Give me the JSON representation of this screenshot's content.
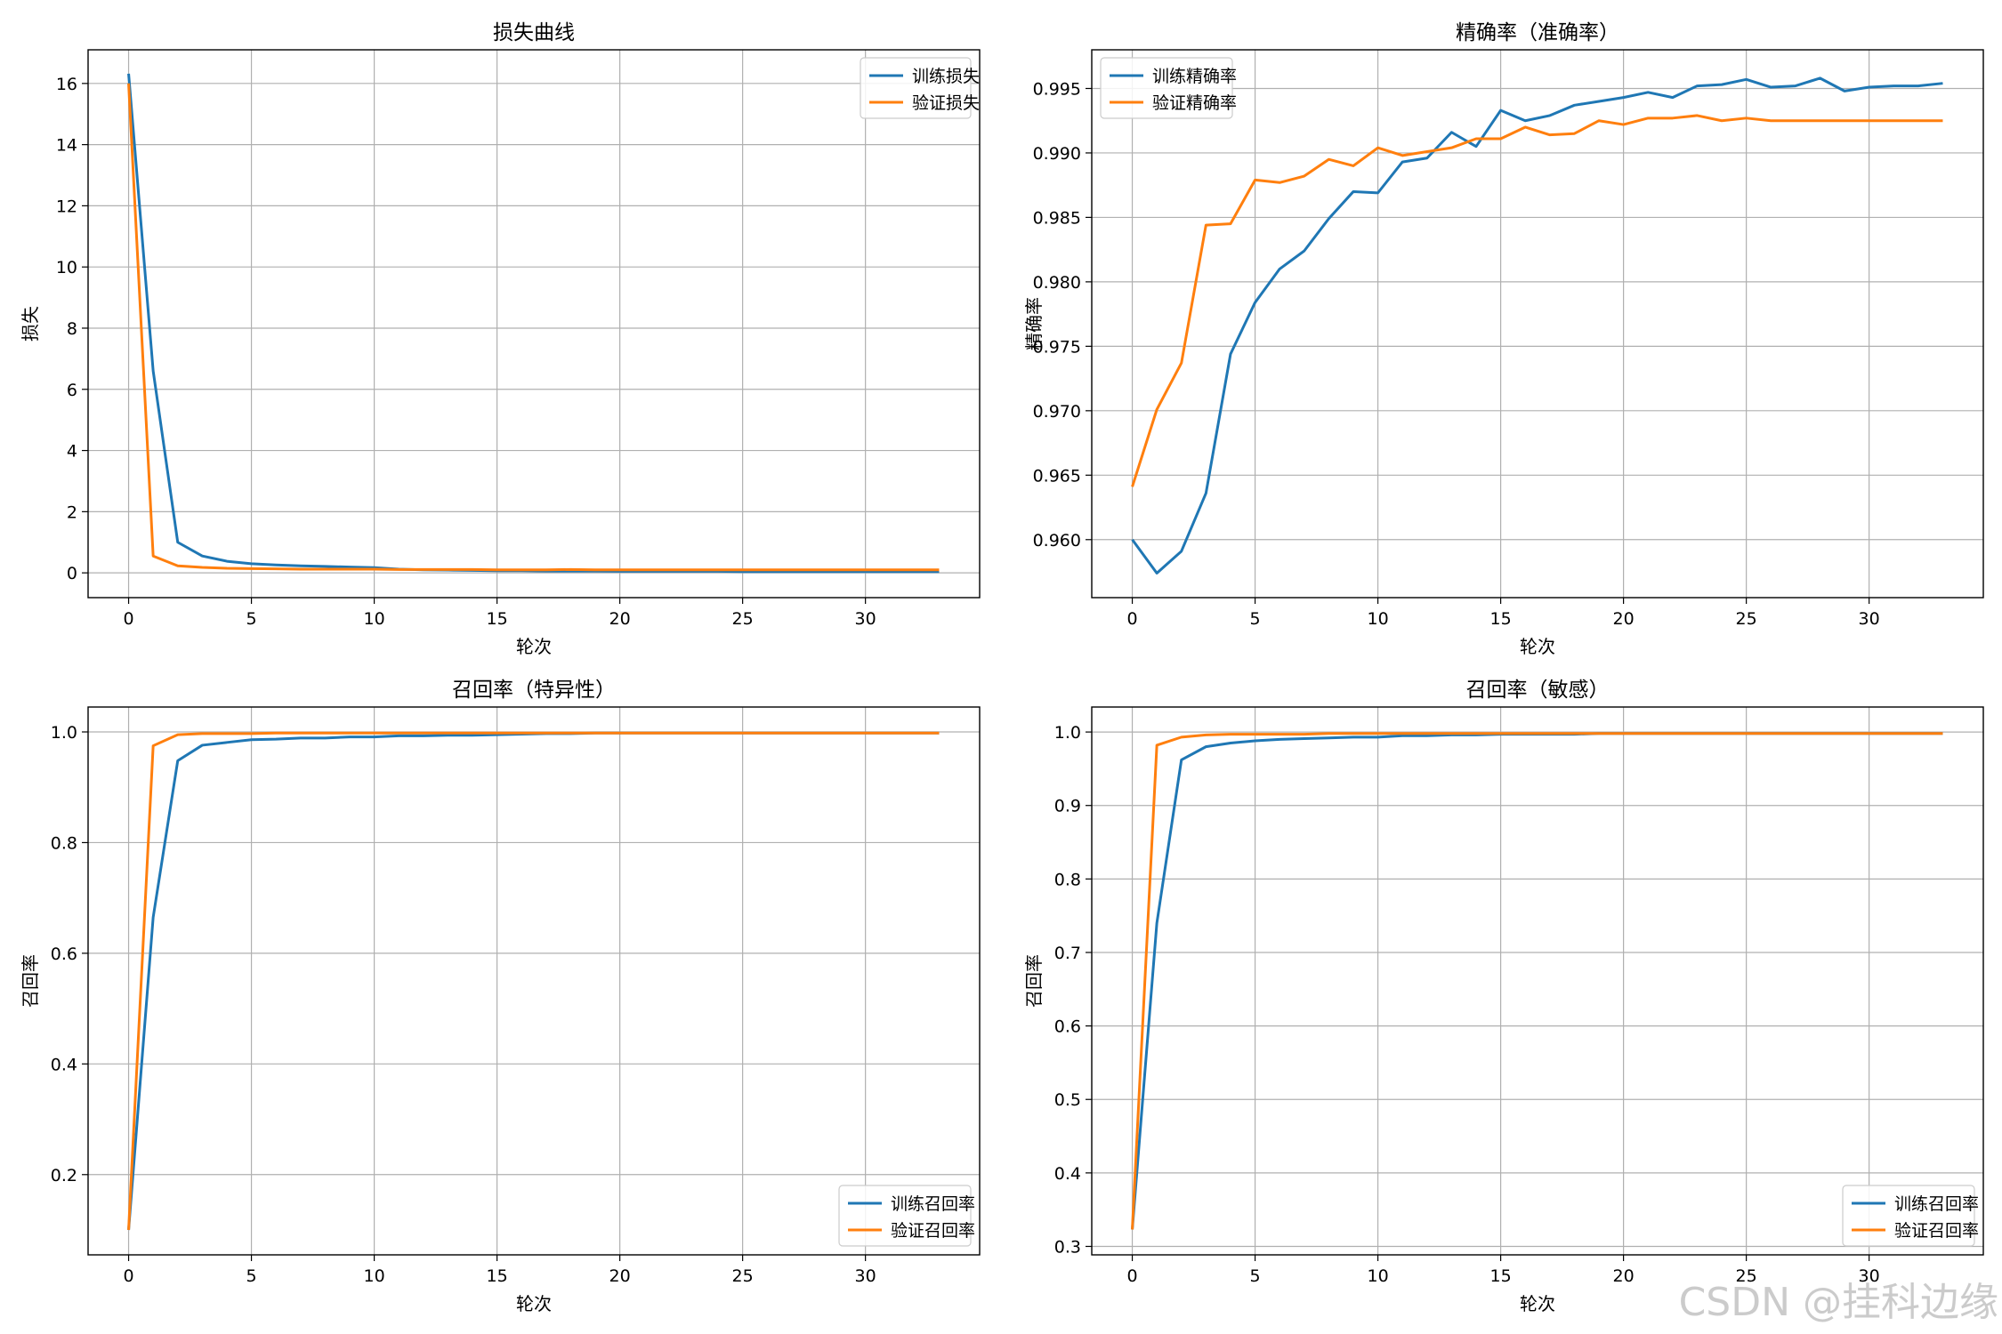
{
  "colors": {
    "blue": "#1f77b4",
    "orange": "#ff7f0e",
    "grid": "#b0b0b0"
  },
  "watermark": "CSDN @挂科边缘",
  "chart_data": [
    {
      "type": "line",
      "title": "损失曲线",
      "xlabel": "轮次",
      "ylabel": "损失",
      "xlim": [
        -1.65,
        34.65
      ],
      "ylim": [
        -0.81,
        17.1
      ],
      "xticks": [
        0,
        5,
        10,
        15,
        20,
        25,
        30
      ],
      "yticks": [
        0,
        2,
        4,
        6,
        8,
        10,
        12,
        14,
        16
      ],
      "ytick_labels": [
        "0",
        "2",
        "4",
        "6",
        "8",
        "10",
        "12",
        "14",
        "16"
      ],
      "grid": true,
      "legend": "upper right",
      "x": [
        0,
        1,
        2,
        3,
        4,
        5,
        6,
        7,
        8,
        9,
        10,
        11,
        12,
        13,
        14,
        15,
        16,
        17,
        18,
        19,
        20,
        21,
        22,
        23,
        24,
        25,
        26,
        27,
        28,
        29,
        30,
        31,
        32,
        33
      ],
      "series": [
        {
          "name": "训练损失",
          "color": "#1f77b4",
          "values": [
            16.32,
            6.6,
            1.0,
            0.55,
            0.38,
            0.3,
            0.26,
            0.23,
            0.21,
            0.19,
            0.17,
            0.12,
            0.1,
            0.09,
            0.08,
            0.07,
            0.07,
            0.06,
            0.06,
            0.06,
            0.05,
            0.05,
            0.05,
            0.05,
            0.05,
            0.04,
            0.04,
            0.04,
            0.04,
            0.04,
            0.04,
            0.04,
            0.04,
            0.04
          ]
        },
        {
          "name": "验证损失",
          "color": "#ff7f0e",
          "values": [
            16.0,
            0.55,
            0.23,
            0.18,
            0.15,
            0.14,
            0.13,
            0.12,
            0.12,
            0.12,
            0.12,
            0.11,
            0.11,
            0.11,
            0.11,
            0.1,
            0.1,
            0.1,
            0.11,
            0.1,
            0.1,
            0.1,
            0.1,
            0.1,
            0.1,
            0.1,
            0.1,
            0.1,
            0.1,
            0.1,
            0.1,
            0.1,
            0.1,
            0.1
          ]
        }
      ]
    },
    {
      "type": "line",
      "title": "精确率（准确率）",
      "xlabel": "轮次",
      "ylabel": "精确率",
      "xlim": [
        -1.65,
        34.65
      ],
      "ylim": [
        0.9555,
        0.998
      ],
      "xticks": [
        0,
        5,
        10,
        15,
        20,
        25,
        30
      ],
      "yticks": [
        0.96,
        0.965,
        0.97,
        0.975,
        0.98,
        0.985,
        0.99,
        0.995
      ],
      "ytick_labels": [
        "0.960",
        "0.965",
        "0.970",
        "0.975",
        "0.980",
        "0.985",
        "0.990",
        "0.995"
      ],
      "grid": true,
      "legend": "upper left",
      "x": [
        0,
        1,
        2,
        3,
        4,
        5,
        6,
        7,
        8,
        9,
        10,
        11,
        12,
        13,
        14,
        15,
        16,
        17,
        18,
        19,
        20,
        21,
        22,
        23,
        24,
        25,
        26,
        27,
        28,
        29,
        30,
        31,
        32,
        33
      ],
      "series": [
        {
          "name": "训练精确率",
          "color": "#1f77b4",
          "values": [
            0.96,
            0.9574,
            0.9591,
            0.9636,
            0.9744,
            0.9784,
            0.981,
            0.9824,
            0.9849,
            0.987,
            0.9869,
            0.9893,
            0.9896,
            0.9916,
            0.9905,
            0.9933,
            0.9925,
            0.9929,
            0.9937,
            0.994,
            0.9943,
            0.9947,
            0.9943,
            0.9952,
            0.9953,
            0.9957,
            0.9951,
            0.9952,
            0.9958,
            0.9948,
            0.9951,
            0.9952,
            0.9952,
            0.9954
          ]
        },
        {
          "name": "验证精确率",
          "color": "#ff7f0e",
          "values": [
            0.9641,
            0.9701,
            0.9737,
            0.9844,
            0.9845,
            0.9879,
            0.9877,
            0.9882,
            0.9895,
            0.989,
            0.9904,
            0.9898,
            0.9901,
            0.9904,
            0.9911,
            0.9911,
            0.992,
            0.9914,
            0.9915,
            0.9925,
            0.9922,
            0.9927,
            0.9927,
            0.9929,
            0.9925,
            0.9927,
            0.9925,
            0.9925,
            0.9925,
            0.9925,
            0.9925,
            0.9925,
            0.9925,
            0.9925
          ]
        }
      ]
    },
    {
      "type": "line",
      "title": "召回率（特异性）",
      "xlabel": "轮次",
      "ylabel": "召回率",
      "xlim": [
        -1.65,
        34.65
      ],
      "ylim": [
        0.055,
        1.045
      ],
      "xticks": [
        0,
        5,
        10,
        15,
        20,
        25,
        30
      ],
      "yticks": [
        0.2,
        0.4,
        0.6,
        0.8,
        1.0
      ],
      "ytick_labels": [
        "0.2",
        "0.4",
        "0.6",
        "0.8",
        "1.0"
      ],
      "grid": true,
      "legend": "lower right",
      "x": [
        0,
        1,
        2,
        3,
        4,
        5,
        6,
        7,
        8,
        9,
        10,
        11,
        12,
        13,
        14,
        15,
        16,
        17,
        18,
        19,
        20,
        21,
        22,
        23,
        24,
        25,
        26,
        27,
        28,
        29,
        30,
        31,
        32,
        33
      ],
      "series": [
        {
          "name": "训练召回率",
          "color": "#1f77b4",
          "values": [
            0.1,
            0.665,
            0.948,
            0.976,
            0.981,
            0.986,
            0.987,
            0.989,
            0.989,
            0.991,
            0.991,
            0.993,
            0.993,
            0.994,
            0.994,
            0.995,
            0.996,
            0.997,
            0.997,
            0.998,
            0.998,
            0.998,
            0.998,
            0.998,
            0.998,
            0.998,
            0.998,
            0.998,
            0.998,
            0.998,
            0.998,
            0.998,
            0.998,
            0.998
          ]
        },
        {
          "name": "验证召回率",
          "color": "#ff7f0e",
          "values": [
            0.1,
            0.975,
            0.995,
            0.997,
            0.997,
            0.997,
            0.998,
            0.998,
            0.998,
            0.998,
            0.998,
            0.998,
            0.998,
            0.998,
            0.998,
            0.998,
            0.998,
            0.998,
            0.998,
            0.998,
            0.998,
            0.998,
            0.998,
            0.998,
            0.998,
            0.998,
            0.998,
            0.998,
            0.998,
            0.998,
            0.998,
            0.998,
            0.998,
            0.998
          ]
        }
      ]
    },
    {
      "type": "line",
      "title": "召回率（敏感）",
      "xlabel": "轮次",
      "ylabel": "召回率",
      "xlim": [
        -1.65,
        34.65
      ],
      "ylim": [
        0.2885,
        1.034
      ],
      "xticks": [
        0,
        5,
        10,
        15,
        20,
        25,
        30
      ],
      "yticks": [
        0.3,
        0.4,
        0.5,
        0.6,
        0.7,
        0.8,
        0.9,
        1.0
      ],
      "ytick_labels": [
        "0.3",
        "0.4",
        "0.5",
        "0.6",
        "0.7",
        "0.8",
        "0.9",
        "1.0"
      ],
      "grid": true,
      "legend": "lower right",
      "x": [
        0,
        1,
        2,
        3,
        4,
        5,
        6,
        7,
        8,
        9,
        10,
        11,
        12,
        13,
        14,
        15,
        16,
        17,
        18,
        19,
        20,
        21,
        22,
        23,
        24,
        25,
        26,
        27,
        28,
        29,
        30,
        31,
        32,
        33
      ],
      "series": [
        {
          "name": "训练召回率",
          "color": "#1f77b4",
          "values": [
            0.323,
            0.74,
            0.962,
            0.98,
            0.985,
            0.988,
            0.99,
            0.991,
            0.992,
            0.993,
            0.993,
            0.995,
            0.995,
            0.996,
            0.996,
            0.997,
            0.997,
            0.997,
            0.997,
            0.998,
            0.998,
            0.998,
            0.998,
            0.998,
            0.998,
            0.998,
            0.998,
            0.998,
            0.998,
            0.998,
            0.998,
            0.998,
            0.998,
            0.998
          ]
        },
        {
          "name": "验证召回率",
          "color": "#ff7f0e",
          "values": [
            0.323,
            0.982,
            0.993,
            0.996,
            0.997,
            0.997,
            0.997,
            0.997,
            0.998,
            0.998,
            0.998,
            0.998,
            0.998,
            0.998,
            0.998,
            0.998,
            0.998,
            0.998,
            0.998,
            0.998,
            0.998,
            0.998,
            0.998,
            0.998,
            0.998,
            0.998,
            0.998,
            0.998,
            0.998,
            0.998,
            0.998,
            0.998,
            0.998,
            0.998
          ]
        }
      ]
    }
  ]
}
